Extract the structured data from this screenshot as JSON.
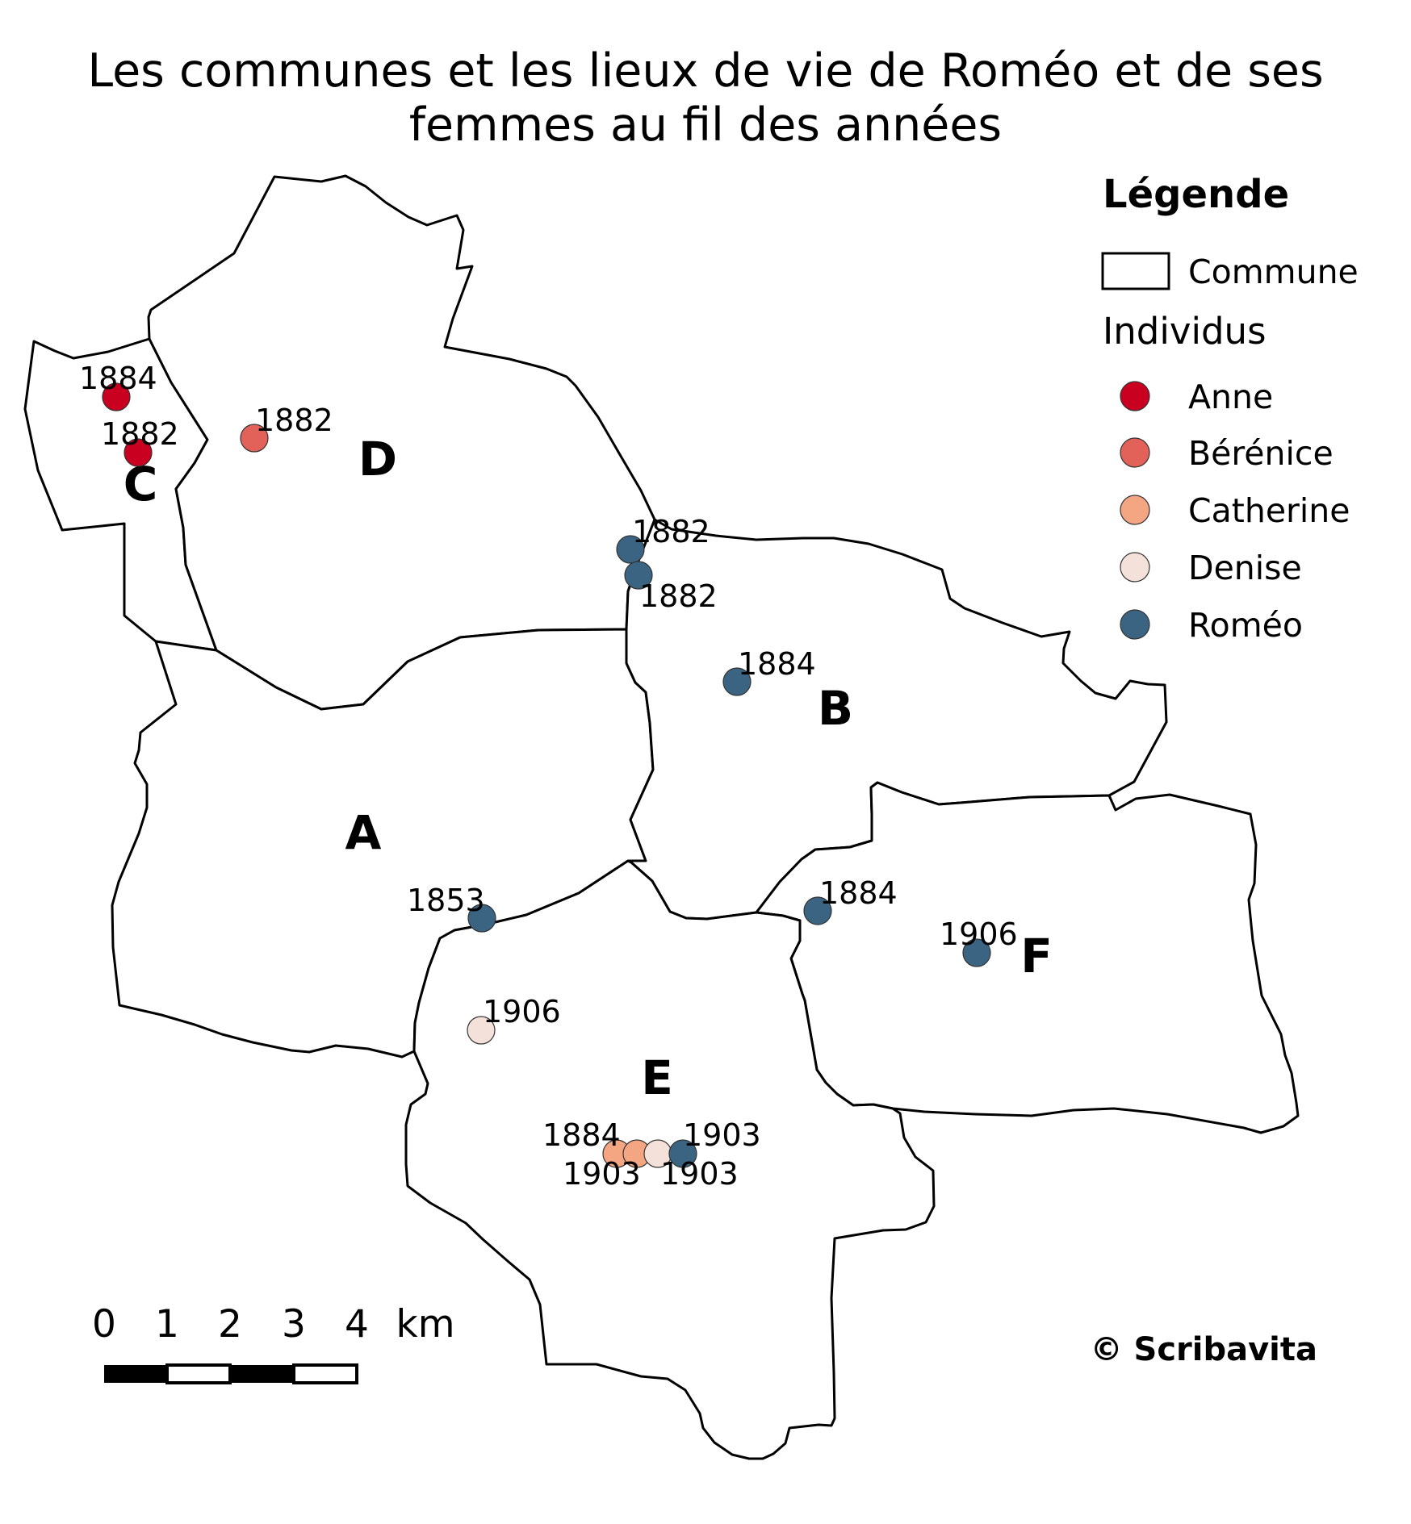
{
  "title_line1": "Les communes et les lieux de vie de Roméo et de ses",
  "title_line2": "femmes au fil des années",
  "communes": [
    "A",
    "B",
    "C",
    "D",
    "E",
    "F"
  ],
  "legend": {
    "title": "Légende",
    "commune_label": "Commune",
    "individuals_title": "Individus",
    "individuals": [
      {
        "name": "Anne",
        "color": "#ca0020"
      },
      {
        "name": "Bérénice",
        "color": "#e26158"
      },
      {
        "name": "Catherine",
        "color": "#f4a582"
      },
      {
        "name": "Denise",
        "color": "#f4e2da"
      },
      {
        "name": "Roméo",
        "color": "#3a6482"
      }
    ]
  },
  "points": [
    {
      "person": "Anne",
      "year": "1884"
    },
    {
      "person": "Anne",
      "year": "1882"
    },
    {
      "person": "Bérénice",
      "year": "1882"
    },
    {
      "person": "Roméo",
      "year": "1882"
    },
    {
      "person": "Roméo",
      "year": "1882"
    },
    {
      "person": "Roméo",
      "year": "1884"
    },
    {
      "person": "Roméo",
      "year": "1853"
    },
    {
      "person": "Denise",
      "year": "1906"
    },
    {
      "person": "Roméo",
      "year": "1884"
    },
    {
      "person": "Roméo",
      "year": "1906"
    },
    {
      "person": "Catherine",
      "year": "1884"
    },
    {
      "person": "Catherine",
      "year": "1903"
    },
    {
      "person": "Denise",
      "year": "1903"
    },
    {
      "person": "Roméo",
      "year": "1903"
    }
  ],
  "scale": {
    "ticks": [
      "0",
      "1",
      "2",
      "3",
      "4"
    ],
    "unit": "km"
  },
  "copyright": "© Scribavita"
}
